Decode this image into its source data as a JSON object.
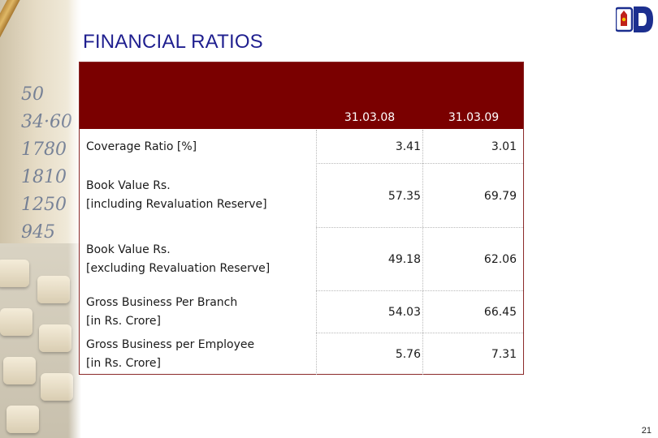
{
  "slide": {
    "title": "FINANCIAL RATIOS",
    "page_number": "21"
  },
  "table": {
    "columns": [
      "31.03.08",
      "31.03.09"
    ],
    "rows": [
      {
        "label_line1": "Coverage Ratio [%]",
        "label_line2": "",
        "values": [
          "3.41",
          "3.01"
        ]
      },
      {
        "label_line1": "Book Value Rs.",
        "label_line2": "[including Revaluation Reserve]",
        "values": [
          "57.35",
          "69.79"
        ]
      },
      {
        "label_line1": "Book Value Rs.",
        "label_line2": "[excluding Revaluation Reserve]",
        "values": [
          "49.18",
          "62.06"
        ]
      },
      {
        "label_line1": "Gross Business Per Branch",
        "label_line2": "[in Rs. Crore]",
        "values": [
          "54.03",
          "66.45"
        ]
      },
      {
        "label_line1": "Gross Business per Employee",
        "label_line2": "[in Rs. Crore]",
        "values": [
          "5.76",
          "7.31"
        ]
      }
    ]
  },
  "colors": {
    "header_background": "#7a0000",
    "title_color": "#1f1f8f",
    "header_text": "#ffffff"
  },
  "icons": {
    "logo": "bank-logo-icon"
  }
}
